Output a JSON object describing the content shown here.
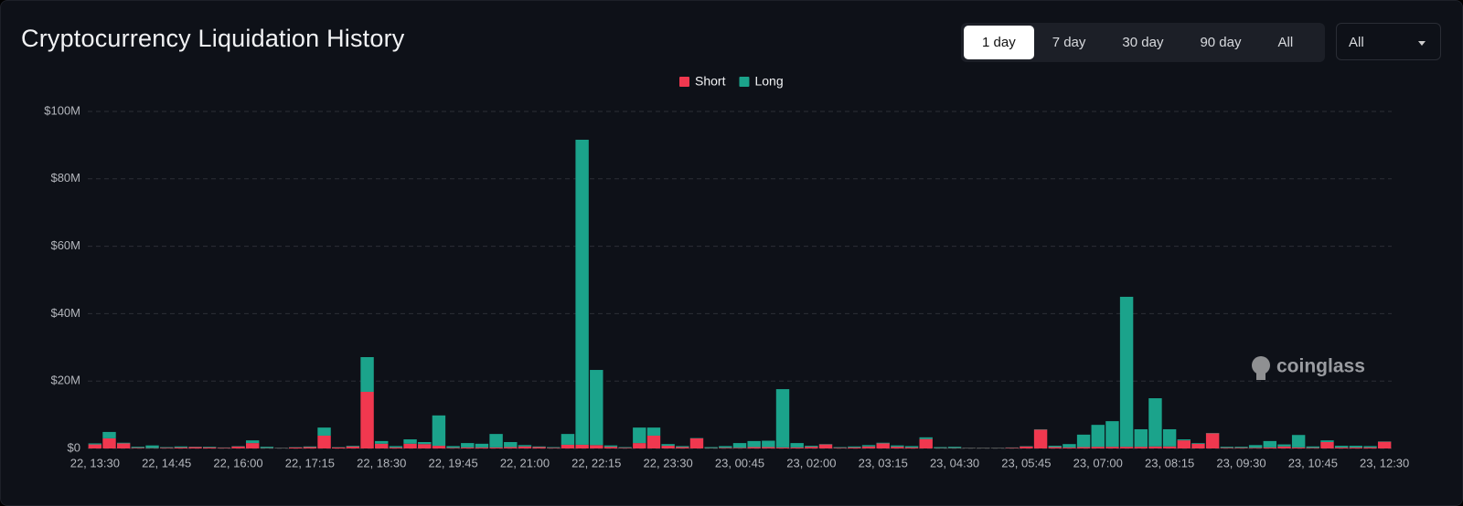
{
  "header": {
    "title": "Cryptocurrency Liquidation History",
    "ranges": [
      "1 day",
      "7 day",
      "30 day",
      "90 day",
      "All"
    ],
    "dropdown": "All"
  },
  "watermark": "coinglass",
  "chart_data": {
    "type": "bar",
    "stacked": true,
    "grid": true,
    "legend": "top",
    "categories": [
      "22, 13:30",
      null,
      null,
      null,
      null,
      "22, 14:45",
      null,
      null,
      null,
      null,
      "22, 16:00",
      null,
      null,
      null,
      null,
      "22, 17:15",
      null,
      null,
      null,
      null,
      "22, 18:30",
      null,
      null,
      null,
      null,
      "22, 19:45",
      null,
      null,
      null,
      null,
      "22, 21:00",
      null,
      null,
      null,
      null,
      "22, 22:15",
      null,
      null,
      null,
      null,
      "22, 23:30",
      null,
      null,
      null,
      null,
      "23, 00:45",
      null,
      null,
      null,
      null,
      "23, 02:00",
      null,
      null,
      null,
      null,
      "23, 03:15",
      null,
      null,
      null,
      null,
      "23, 04:30",
      null,
      null,
      null,
      null,
      "23, 05:45",
      null,
      null,
      null,
      null,
      "23, 07:00",
      null,
      null,
      null,
      null,
      "23, 08:15",
      null,
      null,
      null,
      null,
      "23, 09:30",
      null,
      null,
      null,
      null,
      "23, 10:45",
      null,
      null,
      null,
      null,
      "23, 12:30"
    ],
    "series": [
      {
        "name": "Short",
        "color": "#f0384f",
        "values": [
          1.2,
          3,
          1.5,
          0.2,
          0.1,
          0.2,
          0.3,
          0.4,
          0.3,
          0.2,
          0.6,
          1.6,
          0.1,
          0.1,
          0.3,
          0.4,
          3.8,
          0.3,
          0.6,
          16.8,
          1.4,
          0.3,
          1.4,
          1.3,
          0.8,
          0.2,
          0.3,
          0.3,
          0.3,
          0.4,
          0.6,
          0.4,
          0.2,
          1.1,
          1.1,
          1.0,
          0.5,
          0.2,
          1.6,
          3.8,
          0.8,
          0.4,
          3.0,
          0.1,
          0.2,
          0.2,
          0.4,
          0.4,
          0.3,
          0.3,
          0.5,
          1.2,
          0.2,
          0.3,
          0.6,
          1.5,
          0.5,
          0.3,
          2.8,
          0.1,
          0.1,
          0.1,
          0.1,
          0.1,
          0.2,
          0.6,
          5.6,
          0.4,
          0.3,
          0.4,
          0.5,
          0.5,
          0.5,
          0.5,
          0.6,
          0.6,
          2.4,
          1.4,
          4.5,
          0.2,
          0.2,
          0.2,
          0.3,
          0.6,
          0.3,
          0.2,
          1.9,
          0.3,
          0.3,
          0.3,
          2.0
        ]
      },
      {
        "name": "Long",
        "color": "#1ba38b",
        "values": [
          0.3,
          1.9,
          0.2,
          0.3,
          0.8,
          0.2,
          0.3,
          0.1,
          0.2,
          0.1,
          0.1,
          0.8,
          0.4,
          0.1,
          0.1,
          0.2,
          2.4,
          0.1,
          0.2,
          10.3,
          0.8,
          0.4,
          1.3,
          0.6,
          9.0,
          0.5,
          1.3,
          1.1,
          4.0,
          1.5,
          0.4,
          0.2,
          0.2,
          3.2,
          90.5,
          22.3,
          0.4,
          0.2,
          4.6,
          2.4,
          0.5,
          0.3,
          0.1,
          0.3,
          0.5,
          1.4,
          1.8,
          1.9,
          17.3,
          1.3,
          0.3,
          0.1,
          0.2,
          0.3,
          0.4,
          0.2,
          0.4,
          0.4,
          0.5,
          0.3,
          0.4,
          0.1,
          0.1,
          0.1,
          0.1,
          0.1,
          0.1,
          0.4,
          1.0,
          3.7,
          6.5,
          7.6,
          44.5,
          5.2,
          14.3,
          5.1,
          0.3,
          0.2,
          0.1,
          0.3,
          0.3,
          0.8,
          1.9,
          0.6,
          3.7,
          0.4,
          0.5,
          0.5,
          0.5,
          0.4,
          0.1
        ]
      }
    ],
    "ylim": [
      0,
      100
    ],
    "yticks": [
      {
        "value": 0,
        "label": "$0"
      },
      {
        "value": 20,
        "label": "$20M"
      },
      {
        "value": 40,
        "label": "$40M"
      },
      {
        "value": 60,
        "label": "$60M"
      },
      {
        "value": 80,
        "label": "$80M"
      },
      {
        "value": 100,
        "label": "$100M"
      }
    ]
  }
}
